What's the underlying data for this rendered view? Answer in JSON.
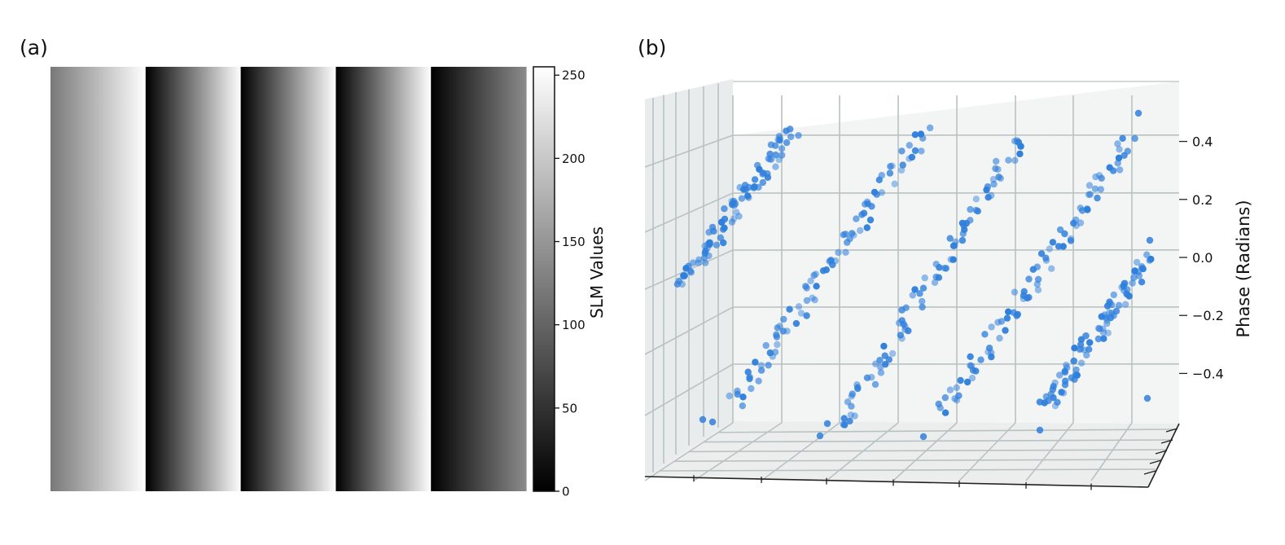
{
  "panel_labels": {
    "a": "(a)",
    "b": "(b)"
  },
  "chart_data": [
    {
      "type": "heatmap",
      "panel": "(a)",
      "description_of_mapping": "grayscale",
      "colormap": "gray",
      "stripes": [
        {
          "start": 120,
          "end": 255
        },
        {
          "start": 0,
          "end": 255
        },
        {
          "start": 0,
          "end": 255
        },
        {
          "start": 0,
          "end": 255
        },
        {
          "start": 0,
          "end": 140
        }
      ],
      "colorbar": {
        "label": "SLM Values",
        "range": [
          0,
          255
        ],
        "ticks": [
          "0",
          "50",
          "100",
          "150",
          "200",
          "250"
        ],
        "tick_values": [
          0,
          50,
          100,
          150,
          200,
          250
        ]
      }
    },
    {
      "type": "scatter",
      "panel": "(b)",
      "projection": "3d",
      "point_color": "#2f7fdc",
      "zlabel": "Phase (Radians)",
      "zlim": [
        -0.6,
        0.6
      ],
      "zticks": [
        "0.4",
        "0.2",
        "0.0",
        "−0.2",
        "−0.4"
      ],
      "ztick_values": [
        0.4,
        0.2,
        0.0,
        -0.2,
        -0.4
      ],
      "series": [
        {
          "segments": 5,
          "phase_range": [
            -0.5,
            0.45
          ]
        }
      ]
    }
  ]
}
